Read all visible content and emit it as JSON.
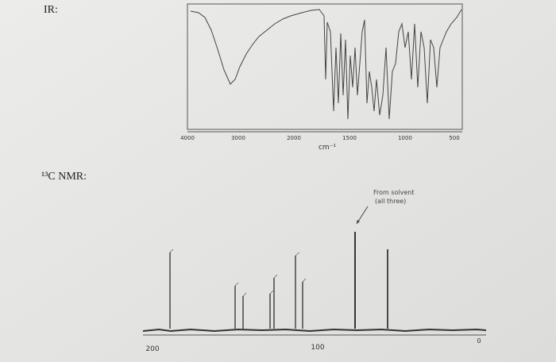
{
  "ir": {
    "label": "IR:",
    "x_labels": [
      "4000",
      "3000",
      "2000",
      "1500",
      "1000",
      "500"
    ],
    "x_unit": "cm⁻¹"
  },
  "nmr": {
    "label": "¹³C NMR:",
    "annotation": [
      "From solvent",
      "(all three)"
    ],
    "x_labels": [
      "200",
      "100",
      "0"
    ]
  }
}
